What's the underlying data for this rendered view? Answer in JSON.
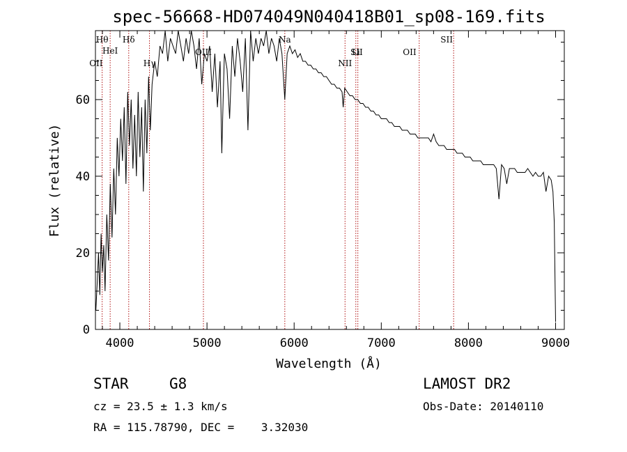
{
  "chart_data": {
    "type": "line",
    "title": "spec-56668-HD074049N040418B01_sp08-169.fits",
    "xlabel": "Wavelength (Å)",
    "ylabel": "Flux (relative)",
    "xlim": [
      3720,
      9100
    ],
    "ylim": [
      0,
      78
    ],
    "x_ticks": [
      4000,
      5000,
      6000,
      7000,
      8000,
      9000
    ],
    "y_ticks": [
      0,
      20,
      40,
      60
    ],
    "grid": false,
    "series": [
      {
        "x": [
          3725,
          3740,
          3755,
          3770,
          3785,
          3800,
          3815,
          3830,
          3850,
          3870,
          3890,
          3910,
          3930,
          3950,
          3970,
          3990,
          4010,
          4030,
          4050,
          4070,
          4090,
          4110,
          4130,
          4150,
          4170,
          4190,
          4210,
          4230,
          4250,
          4270,
          4290,
          4310,
          4330,
          4350,
          4370,
          4400,
          4430,
          4460,
          4490,
          4520,
          4550,
          4580,
          4610,
          4640,
          4670,
          4700,
          4730,
          4760,
          4790,
          4820,
          4850,
          4880,
          4910,
          4940,
          4970,
          5000,
          5030,
          5060,
          5090,
          5120,
          5150,
          5170,
          5185,
          5200,
          5230,
          5260,
          5290,
          5320,
          5350,
          5380,
          5410,
          5440,
          5470,
          5500,
          5530,
          5560,
          5590,
          5620,
          5650,
          5680,
          5710,
          5740,
          5770,
          5800,
          5830,
          5860,
          5893,
          5920,
          5950,
          5980,
          6010,
          6040,
          6070,
          6100,
          6130,
          6160,
          6190,
          6220,
          6250,
          6280,
          6310,
          6340,
          6370,
          6400,
          6430,
          6460,
          6490,
          6520,
          6550,
          6563,
          6580,
          6610,
          6640,
          6670,
          6700,
          6730,
          6760,
          6790,
          6820,
          6850,
          6880,
          6910,
          6940,
          6970,
          7000,
          7030,
          7060,
          7090,
          7120,
          7150,
          7180,
          7210,
          7240,
          7270,
          7300,
          7330,
          7360,
          7390,
          7420,
          7450,
          7480,
          7510,
          7540,
          7570,
          7600,
          7630,
          7660,
          7690,
          7720,
          7750,
          7780,
          7810,
          7840,
          7870,
          7900,
          7930,
          7960,
          7990,
          8020,
          8050,
          8080,
          8110,
          8140,
          8170,
          8200,
          8230,
          8260,
          8290,
          8320,
          8350,
          8380,
          8410,
          8440,
          8470,
          8500,
          8530,
          8560,
          8590,
          8620,
          8650,
          8680,
          8710,
          8740,
          8770,
          8800,
          8830,
          8860,
          8890,
          8920,
          8950,
          8970,
          8985,
          8995,
          9000
        ],
        "y": [
          5,
          12,
          20,
          9,
          25,
          15,
          22,
          10,
          30,
          18,
          38,
          24,
          42,
          30,
          50,
          40,
          55,
          44,
          58,
          38,
          62,
          48,
          60,
          42,
          56,
          40,
          62,
          45,
          58,
          36,
          60,
          46,
          66,
          52,
          64,
          70,
          66,
          74,
          72,
          78,
          70,
          76,
          74,
          72,
          78,
          74,
          70,
          76,
          72,
          78,
          74,
          68,
          76,
          64,
          72,
          70,
          74,
          62,
          72,
          58,
          70,
          46,
          60,
          72,
          68,
          55,
          74,
          66,
          76,
          70,
          62,
          76,
          52,
          78,
          70,
          76,
          72,
          76,
          74,
          78,
          72,
          76,
          74,
          70,
          76,
          72,
          60,
          72,
          74,
          72,
          73,
          71,
          72,
          70,
          70,
          69,
          69,
          68,
          68,
          67,
          67,
          66,
          66,
          65,
          64,
          64,
          63,
          63,
          62,
          58,
          63,
          62,
          61,
          61,
          60,
          60,
          59,
          59,
          58,
          58,
          57,
          57,
          56,
          56,
          55,
          55,
          55,
          54,
          54,
          53,
          53,
          53,
          52,
          52,
          52,
          51,
          51,
          51,
          50,
          50,
          50,
          50,
          50,
          49,
          51,
          49,
          48,
          48,
          48,
          47,
          47,
          47,
          47,
          46,
          46,
          46,
          45,
          45,
          45,
          44,
          44,
          44,
          44,
          43,
          43,
          43,
          43,
          43,
          42,
          34,
          43,
          42,
          38,
          42,
          42,
          42,
          41,
          41,
          41,
          41,
          42,
          41,
          40,
          41,
          40,
          40,
          41,
          36,
          40,
          39,
          36,
          28,
          10,
          2
        ]
      }
    ],
    "lines": [
      {
        "name": "Hθ",
        "x": 3797
      },
      {
        "name": "OII",
        "x": 3727
      },
      {
        "name": "HeI",
        "x": 3889
      },
      {
        "name": "Hδ",
        "x": 4102
      },
      {
        "name": "Hγ",
        "x": 4340
      },
      {
        "name": "OIII",
        "x": 4959
      },
      {
        "name": "Na",
        "x": 5893
      },
      {
        "name": "NII",
        "x": 6584
      },
      {
        "name": "SII",
        "x": 6717
      },
      {
        "name": "Li",
        "x": 6708
      },
      {
        "name": "OII",
        "x": 7325
      },
      {
        "name": "SII",
        "x": 7750
      }
    ],
    "line_markers_x": [
      3797,
      3889,
      4102,
      4340,
      4959,
      5893,
      6584,
      6708,
      6731,
      7435,
      7830
    ]
  },
  "info": {
    "object_class": "STAR",
    "subclass": "G8",
    "cz": "cz = 23.5 ± 1.3 km/s",
    "radec": "RA = 115.78790, DEC =    3.32030",
    "survey": "LAMOST DR2",
    "obs_date": "Obs-Date: 20140110"
  }
}
